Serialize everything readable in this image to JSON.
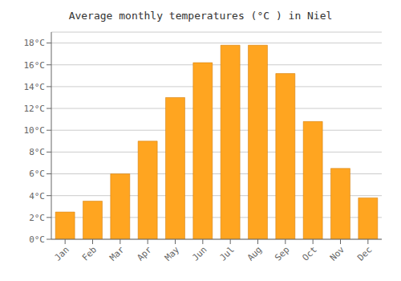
{
  "chart_data": {
    "type": "bar",
    "title": "Average monthly temperatures (°C ) in Niel",
    "categories": [
      "Jan",
      "Feb",
      "Mar",
      "Apr",
      "May",
      "Jun",
      "Jul",
      "Aug",
      "Sep",
      "Oct",
      "Nov",
      "Dec"
    ],
    "values": [
      2.5,
      3.5,
      6.0,
      9.0,
      13.0,
      16.2,
      17.8,
      17.8,
      15.2,
      10.8,
      6.5,
      3.8
    ],
    "color": "#FFA520",
    "ylim": [
      0,
      19
    ],
    "yticks": [
      {
        "value": 0,
        "label": "0°C"
      },
      {
        "value": 2,
        "label": "2°C"
      },
      {
        "value": 4,
        "label": "4°C"
      },
      {
        "value": 6,
        "label": "6°C"
      },
      {
        "value": 8,
        "label": "8°C"
      },
      {
        "value": 10,
        "label": "10°C"
      },
      {
        "value": 12,
        "label": "12°C"
      },
      {
        "value": 14,
        "label": "14°C"
      },
      {
        "value": 16,
        "label": "16°C"
      },
      {
        "value": 18,
        "label": "18°C"
      }
    ],
    "grid": true
  }
}
